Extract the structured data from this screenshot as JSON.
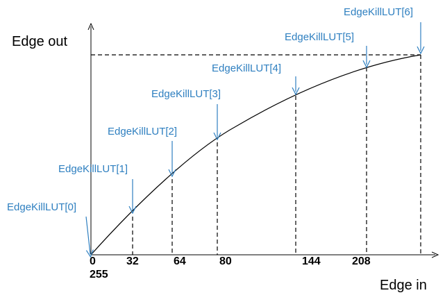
{
  "axes": {
    "y_title": "Edge out",
    "x_title": "Edge in",
    "max_out_label": "255"
  },
  "tick_labels": [
    "0",
    "32",
    "64",
    "80",
    "144",
    "208"
  ],
  "lut_labels": [
    "EdgeKillLUT[0]",
    "EdgeKillLUT[1]",
    "EdgeKillLUT[2]",
    "EdgeKillLUT[3]",
    "EdgeKillLUT[4]",
    "EdgeKillLUT[5]",
    "EdgeKillLUT[6]"
  ],
  "colors": {
    "annotation": "#2e7fc0",
    "lines": "#000000"
  }
}
